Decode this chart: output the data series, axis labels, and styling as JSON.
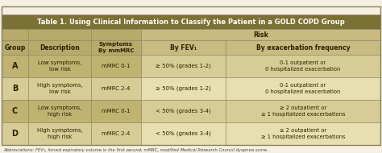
{
  "title": "Table 1. Using Clinical Information to Classify the Patient in a GOLD COPD Group",
  "title_bg": "#7B7135",
  "title_color": "#FFFFFF",
  "header_bg_left": "#B8AA6A",
  "header_bg_right": "#C8BA80",
  "row_bg_A": "#C0B270",
  "row_bg_B": "#D8CC96",
  "row_bg_C": "#C0B270",
  "row_bg_D": "#D8CC96",
  "risk_bg_A": "#D8CC96",
  "risk_bg_B": "#E8DFB0",
  "risk_bg_C": "#D8CC96",
  "risk_bg_D": "#E8DFB0",
  "outer_bg": "#F0EBD0",
  "border_color": "#A09060",
  "text_color": "#2A2000",
  "abbrev": "Abbreviations: FEV₁, forced expiratory volume in the first second; mMRC, modified Medical Research Council dyspnea score.",
  "rows": [
    {
      "group": "A",
      "description": "Low symptoms,\nlow risk",
      "symptoms": "mMRC 0-1",
      "fev": "≥ 50% (grades 1-2)",
      "exacerbation": "0-1 outpatient or\n0 hospitalized exacerbation"
    },
    {
      "group": "B",
      "description": "High symptoms,\nlow risk",
      "symptoms": "mMRC 2-4",
      "fev": "≥ 50% (grades 1-2)",
      "exacerbation": "0-1 outpatient or\n0 hospitalized exacerbation"
    },
    {
      "group": "C",
      "description": "Low symptoms,\nhigh risk",
      "symptoms": "mMRC 0-1",
      "fev": "< 50% (grades 3-4)",
      "exacerbation": "≥ 2 outpatient or\n≥ 1 hospitalized exacerbations"
    },
    {
      "group": "D",
      "description": "High symptoms,\nhigh risk",
      "symptoms": "mMRC 2-4",
      "fev": "< 50% (grades 3-4)",
      "exacerbation": "≥ 2 outpatient or\n≥ 1 hospitalized exacerbations"
    }
  ]
}
